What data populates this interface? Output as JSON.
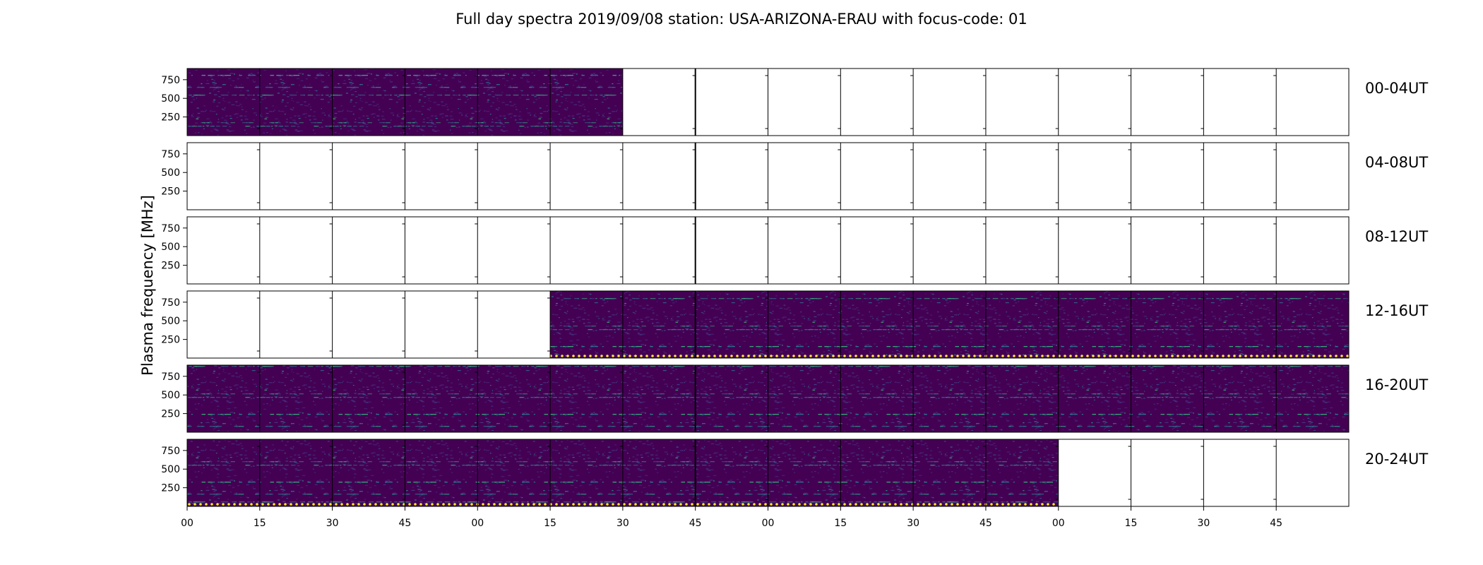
{
  "chart_data": {
    "type": "heatmap",
    "title": "Full day spectra 2019/09/08 station: USA-ARIZONA-ERAU with focus-code: 01",
    "ylabel": "Plasma frequency [MHz]",
    "xlabel": "",
    "ylim": [
      0,
      900
    ],
    "y_ticks": [
      250,
      500,
      750
    ],
    "x_tick_labels": [
      "00",
      "15",
      "30",
      "45",
      "00",
      "15",
      "30",
      "45",
      "00",
      "15",
      "30",
      "45",
      "00",
      "15",
      "30",
      "45"
    ],
    "panel_minutes": 15,
    "panels_per_row": 16,
    "colormap": "viridis",
    "background_color": "#440154",
    "rows": [
      {
        "label": "00-04UT",
        "data_start_min": 0,
        "data_end_min": 90
      },
      {
        "label": "04-08UT",
        "data_start_min": 0,
        "data_end_min": 0
      },
      {
        "label": "08-12UT",
        "data_start_min": 0,
        "data_end_min": 0
      },
      {
        "label": "12-16UT",
        "data_start_min": 75,
        "data_end_min": 240
      },
      {
        "label": "16-20UT",
        "data_start_min": 0,
        "data_end_min": 240
      },
      {
        "label": "20-24UT",
        "data_start_min": 0,
        "data_end_min": 180
      }
    ]
  }
}
